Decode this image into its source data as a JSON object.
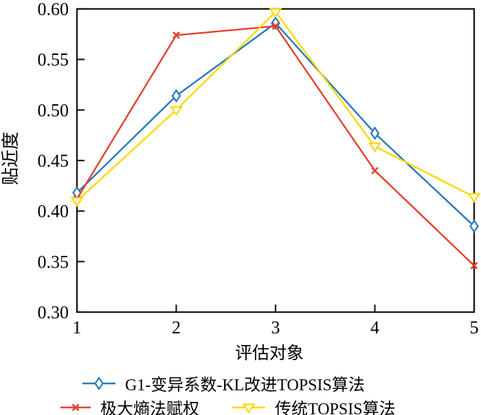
{
  "figure": {
    "background": "#ffffff",
    "frame_color": "#1a1a1a",
    "text_color": "#000000"
  },
  "chart_data": {
    "type": "line",
    "title": "",
    "xlabel": "评估对象",
    "ylabel": "贴近度",
    "xlim": [
      1,
      5
    ],
    "ylim": [
      0.3,
      0.6
    ],
    "x": [
      1,
      2,
      3,
      4,
      5
    ],
    "xtick_labels": [
      "1",
      "2",
      "3",
      "4",
      "5"
    ],
    "yticks": [
      0.3,
      0.35,
      0.4,
      0.45,
      0.5,
      0.55,
      0.6
    ],
    "ytick_labels": [
      "0.30",
      "0.35",
      "0.40",
      "0.45",
      "0.50",
      "0.55",
      "0.60"
    ],
    "grid": false,
    "legend_position": "below",
    "series": [
      {
        "name": "G1-变异系数-KL改进TOPSIS算法",
        "color": "#2578b9",
        "marker": "diamond",
        "values": [
          0.418,
          0.514,
          0.586,
          0.477,
          0.385
        ]
      },
      {
        "name": "极大熵法赋权",
        "color": "#e5402a",
        "marker": "x",
        "values": [
          0.412,
          0.574,
          0.583,
          0.44,
          0.346
        ]
      },
      {
        "name": "传统TOPSIS算法",
        "color": "#ffd800",
        "marker": "triangle-down",
        "values": [
          0.41,
          0.5,
          0.597,
          0.464,
          0.414
        ]
      }
    ]
  }
}
